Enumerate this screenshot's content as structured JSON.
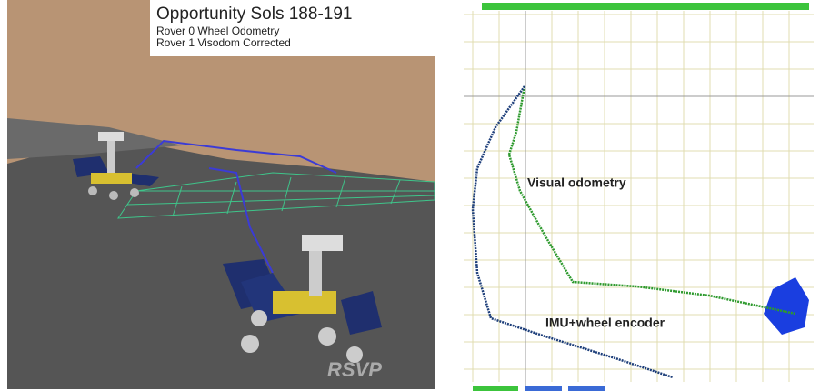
{
  "left_panel": {
    "title": "Opportunity Sols 188-191",
    "legend": [
      "Rover 0 Wheel Odometry",
      "Rover 1 Visodom Corrected"
    ],
    "watermark": "RSVP"
  },
  "right_panel": {
    "annotations": [
      "Visual odometry",
      "IMU+wheel encoder"
    ]
  }
}
